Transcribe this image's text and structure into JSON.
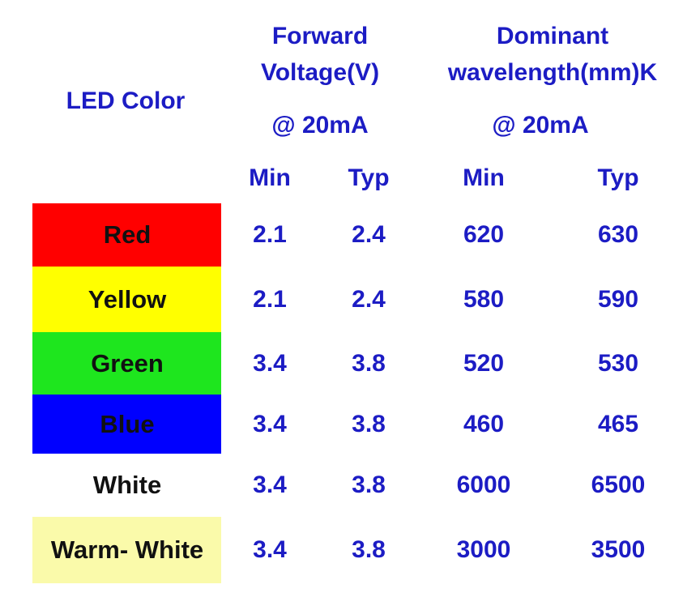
{
  "table": {
    "header": {
      "led_color": "LED Color",
      "forward_voltage": [
        "Forward",
        "Voltage(V)"
      ],
      "forward_voltage_condition": "@ 20mA",
      "dominant_wavelength": [
        "Dominant",
        "wavelength(mm)K"
      ],
      "dominant_wavelength_condition": "@ 20mA",
      "sub": [
        "Min",
        "Typ",
        "Min",
        "Typ"
      ]
    },
    "rows": [
      {
        "name": "Red",
        "color": "#ff0000",
        "values": [
          2.1,
          2.4,
          620,
          630
        ]
      },
      {
        "name": "Yellow",
        "color": "#ffff00",
        "values": [
          2.1,
          2.4,
          580,
          590
        ]
      },
      {
        "name": "Green",
        "color": "#1ee61e",
        "values": [
          3.4,
          3.8,
          520,
          530
        ]
      },
      {
        "name": "Blue",
        "color": "#0000ff",
        "values": [
          3.4,
          3.8,
          460,
          465
        ]
      },
      {
        "name": "White",
        "color": "#ffffff",
        "values": [
          3.4,
          3.8,
          6000,
          6500
        ]
      },
      {
        "name": "Warm- White",
        "color": "#fafaaa",
        "values": [
          3.4,
          3.8,
          3000,
          3500
        ]
      }
    ]
  }
}
